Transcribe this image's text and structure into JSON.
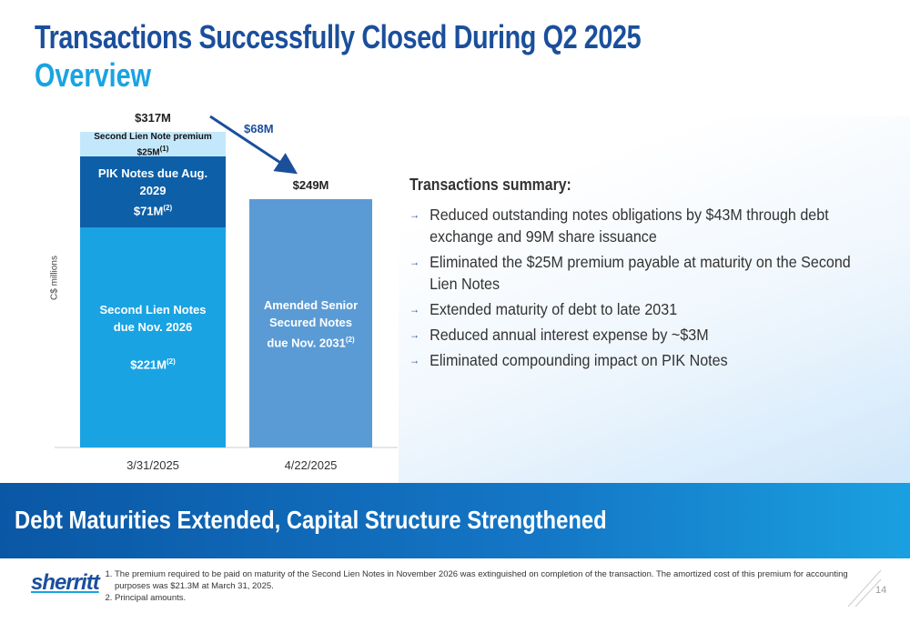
{
  "title": "Transactions Successfully Closed During Q2 2025",
  "subtitle": "Overview",
  "chart_data": {
    "type": "stacked_bar",
    "y_axis_label": "C$ millions",
    "categories": [
      "3/31/2025",
      "4/22/2025"
    ],
    "ylim": [
      0,
      317
    ],
    "series": [
      {
        "name": "Second Lien Notes due Nov. 2026",
        "color": "#19a3e3",
        "values": [
          221,
          null
        ],
        "value_labels": [
          "$221M",
          null
        ],
        "note": "(2)"
      },
      {
        "name": "PIK Notes due Aug. 2029",
        "color": "#0d5fa8",
        "values": [
          71,
          null
        ],
        "value_labels": [
          "$71M",
          null
        ],
        "note": "(2)"
      },
      {
        "name": "Second Lien Note premium",
        "color": "#c4e8fb",
        "values": [
          25,
          null
        ],
        "value_labels": [
          "$25M",
          null
        ],
        "note": "(1)"
      },
      {
        "name": "Amended Senior Secured Notes due Nov. 2031",
        "color": "#5b9bd5",
        "values": [
          null,
          249
        ],
        "value_labels": [
          null,
          null
        ],
        "note": "(2)"
      }
    ],
    "totals": {
      "values": [
        317,
        249
      ],
      "value_labels": [
        "$317M",
        "$249M"
      ]
    },
    "annotation": "$68M"
  },
  "summary": {
    "heading": "Transactions summary:",
    "items": [
      "Reduced outstanding notes obligations by $43M through debt exchange and 99M share issuance",
      "Eliminated the $25M premium payable at maturity on the Second Lien Notes",
      "Extended maturity of debt to late 2031",
      "Reduced annual interest expense by ~$3M",
      "Eliminated compounding impact on PIK Notes"
    ]
  },
  "banner": "Debt Maturities Extended, Capital Structure Strengthened",
  "footnotes": [
    "The premium required to be paid on maturity of the Second Lien Notes in November 2026 was extinguished on completion of the transaction. The amortized cost of this premium for accounting purposes was $21.3M at March 31, 2025.",
    "Principal amounts."
  ],
  "logo": "sherritt",
  "page_number": 14
}
